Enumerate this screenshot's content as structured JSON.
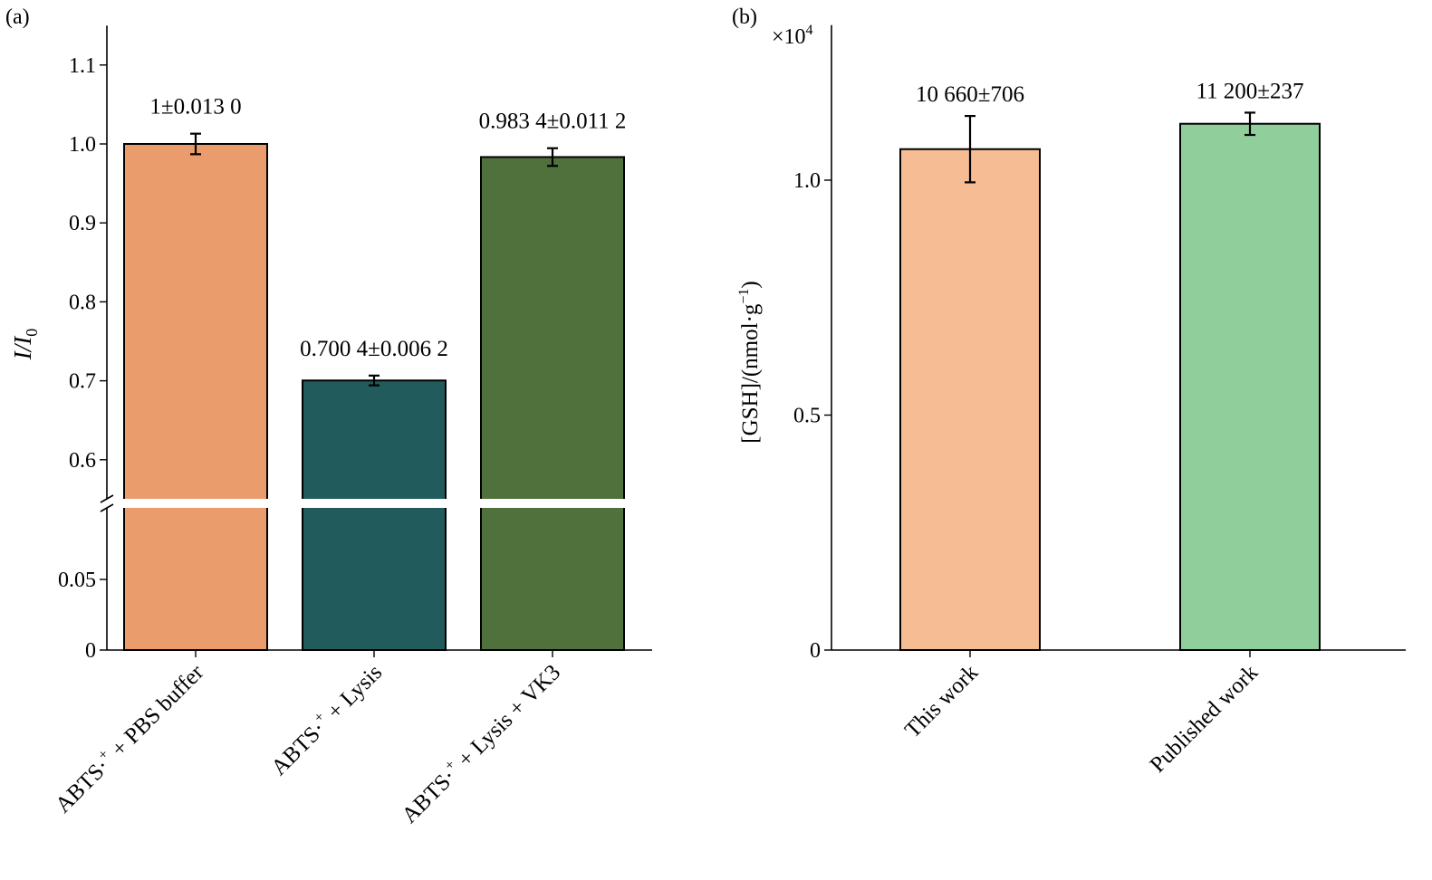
{
  "chart_data": [
    {
      "type": "bar",
      "panel_label": "(a)",
      "ylabel_main": "I/I",
      "ylabel_sub": "0",
      "categories": [
        {
          "main": "ABTS·",
          "sup": "+",
          "rest": " + PBS buffer"
        },
        {
          "main": "ABTS·",
          "sup": "+",
          "rest": " + Lysis"
        },
        {
          "main": "ABTS·",
          "sup": "+",
          "rest": " + Lysis + VK3"
        }
      ],
      "values": [
        1.0,
        0.7004,
        0.9834
      ],
      "errors": [
        0.013,
        0.0062,
        0.0112
      ],
      "data_labels": [
        "1±0.013 0",
        "0.700 4±0.006 2",
        "0.983 4±0.011 2"
      ],
      "colors": [
        "#EA9C6D",
        "#215B5C",
        "#50703C"
      ],
      "axis_break": true,
      "ylim_upper": [
        0.55,
        1.15
      ],
      "ylim_lower": [
        0,
        0.09
      ],
      "yticks_upper": [
        "0.6",
        "0.7",
        "0.8",
        "0.9",
        "1.0",
        "1.1"
      ],
      "yticks_lower": [
        "0",
        "0.05"
      ]
    },
    {
      "type": "bar",
      "panel_label": "(b)",
      "ylabel": "[GSH]/(nmol·g",
      "ylabel_sup": "−1",
      "ylabel_end": ")",
      "scale_label": "×10",
      "scale_sup": "4",
      "categories": [
        "This work",
        "Published work"
      ],
      "values": [
        1.066,
        1.12
      ],
      "errors": [
        0.0706,
        0.0237
      ],
      "data_labels": [
        "10 660±706",
        "11 200±237"
      ],
      "colors": [
        "#F6BC94",
        "#90CF9C"
      ],
      "ylim": [
        0,
        1.33
      ],
      "yticks": [
        "0",
        "0.5",
        "1.0"
      ]
    }
  ]
}
